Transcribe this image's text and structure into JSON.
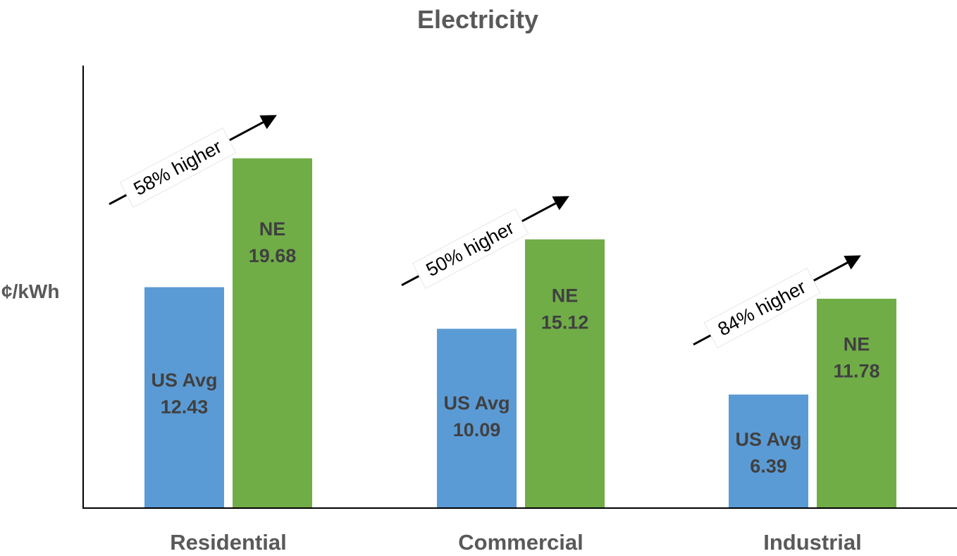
{
  "chart_data": {
    "type": "bar",
    "title": "Electricity",
    "xlabel": "",
    "ylabel": "¢/kWh",
    "categories": [
      "Residential",
      "Commercial",
      "Industrial"
    ],
    "series": [
      {
        "name": "US Avg",
        "values": [
          12.43,
          10.09,
          6.39
        ],
        "color": "#5b9bd5"
      },
      {
        "name": "NE",
        "values": [
          19.68,
          15.12,
          11.78
        ],
        "color": "#70ad47"
      }
    ],
    "ylim": [
      0,
      25
    ],
    "grid": false,
    "legend": "none",
    "annotations": [
      "58% higher",
      "50% higher",
      "84% higher"
    ]
  }
}
